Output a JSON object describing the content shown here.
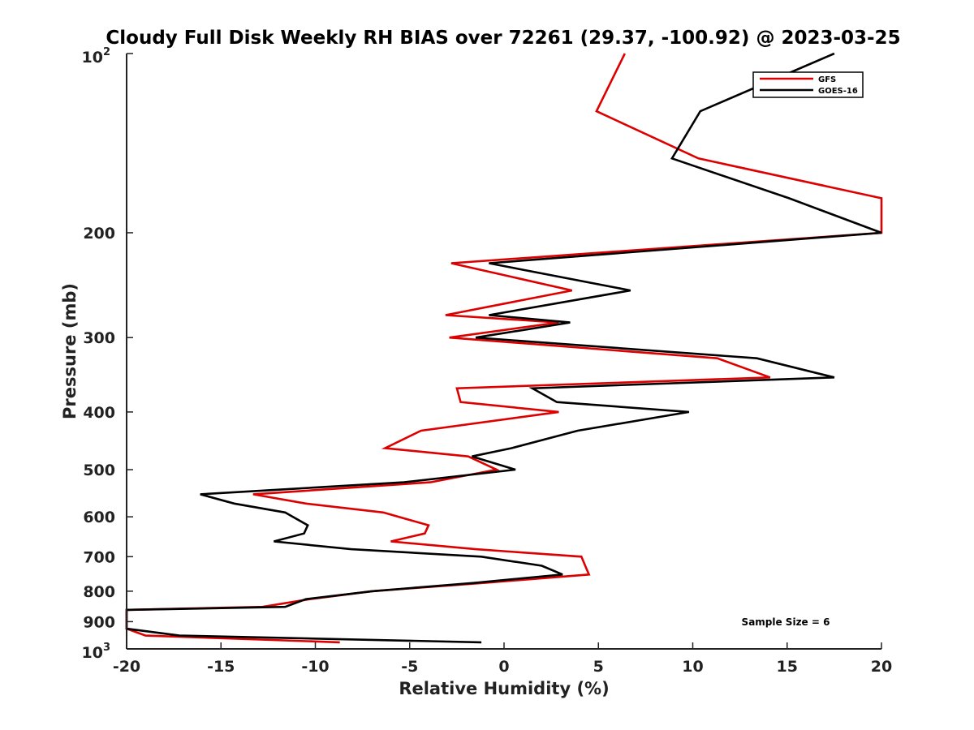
{
  "chart_data": {
    "type": "line",
    "title": "Cloudy Full Disk Weekly RH BIAS over 72261 (29.37, -100.92) @ 2023-03-25",
    "xlabel": "Relative Humidity (%)",
    "ylabel": "Pressure (mb)",
    "xlim": [
      -20,
      20
    ],
    "ylim": [
      100,
      1000
    ],
    "yscale": "log",
    "y_reversed": true,
    "x_ticks": [
      -20,
      -15,
      -10,
      -5,
      0,
      5,
      10,
      15,
      20
    ],
    "x_tick_labels": [
      "-20",
      "-15",
      "-10",
      "-5",
      "0",
      "5",
      "10",
      "15",
      "20"
    ],
    "y_ticks": [
      200,
      300,
      400,
      500,
      600,
      700,
      800,
      900
    ],
    "y_tick_labels": [
      "200",
      "300",
      "400",
      "500",
      "600",
      "700",
      "800",
      "900"
    ],
    "y_top_label": {
      "base": "10",
      "exp": "2"
    },
    "y_bottom_label": {
      "base": "10",
      "exp": "3"
    },
    "grid": false,
    "legend_position": "top-right",
    "note": "Sample Size = 6",
    "series": [
      {
        "name": "GFS",
        "color": "#dd0000",
        "points": [
          [
            6.4,
            100
          ],
          [
            4.9,
            125
          ],
          [
            10.3,
            150
          ],
          [
            20,
            175
          ],
          [
            20,
            200
          ],
          [
            -2.8,
            225
          ],
          [
            3.6,
            250
          ],
          [
            -3.1,
            275
          ],
          [
            2.9,
            283
          ],
          [
            -2.9,
            300
          ],
          [
            11.3,
            325
          ],
          [
            14.1,
            350
          ],
          [
            -2.5,
            365
          ],
          [
            -2.3,
            385
          ],
          [
            2.9,
            400
          ],
          [
            -4.4,
            430
          ],
          [
            -6.3,
            460
          ],
          [
            -1.9,
            475
          ],
          [
            -0.4,
            500
          ],
          [
            -3.9,
            525
          ],
          [
            -13.3,
            550
          ],
          [
            -10.5,
            570
          ],
          [
            -6.4,
            590
          ],
          [
            -4.0,
            620
          ],
          [
            -4.2,
            640
          ],
          [
            -6.0,
            660
          ],
          [
            -1.5,
            680
          ],
          [
            4.1,
            700
          ],
          [
            4.3,
            725
          ],
          [
            4.5,
            750
          ],
          [
            -1.1,
            775
          ],
          [
            -7.0,
            800
          ],
          [
            -10.3,
            825
          ],
          [
            -12.8,
            850
          ],
          [
            -20,
            860
          ],
          [
            -20,
            925
          ],
          [
            -19.0,
            950
          ],
          [
            -14.8,
            960
          ],
          [
            -8.7,
            975
          ]
        ]
      },
      {
        "name": "GOES-16",
        "color": "#000000",
        "points": [
          [
            17.5,
            100
          ],
          [
            10.4,
            125
          ],
          [
            8.9,
            150
          ],
          [
            15.1,
            175
          ],
          [
            20,
            200
          ],
          [
            -0.8,
            225
          ],
          [
            6.7,
            250
          ],
          [
            -0.8,
            275
          ],
          [
            3.5,
            283
          ],
          [
            -1.5,
            300
          ],
          [
            13.4,
            325
          ],
          [
            17.5,
            350
          ],
          [
            1.5,
            365
          ],
          [
            2.8,
            385
          ],
          [
            9.8,
            400
          ],
          [
            3.9,
            430
          ],
          [
            0.4,
            460
          ],
          [
            -1.7,
            475
          ],
          [
            0.6,
            500
          ],
          [
            -5.3,
            525
          ],
          [
            -16.1,
            550
          ],
          [
            -14.3,
            570
          ],
          [
            -11.6,
            590
          ],
          [
            -10.4,
            620
          ],
          [
            -10.6,
            640
          ],
          [
            -12.2,
            660
          ],
          [
            -8.1,
            680
          ],
          [
            -1.2,
            700
          ],
          [
            2.0,
            725
          ],
          [
            3.1,
            750
          ],
          [
            -1.6,
            775
          ],
          [
            -7.0,
            800
          ],
          [
            -10.5,
            825
          ],
          [
            -11.6,
            850
          ],
          [
            -20,
            860
          ],
          [
            -20,
            925
          ],
          [
            -17.2,
            950
          ],
          [
            -1.2,
            975
          ]
        ]
      }
    ]
  }
}
